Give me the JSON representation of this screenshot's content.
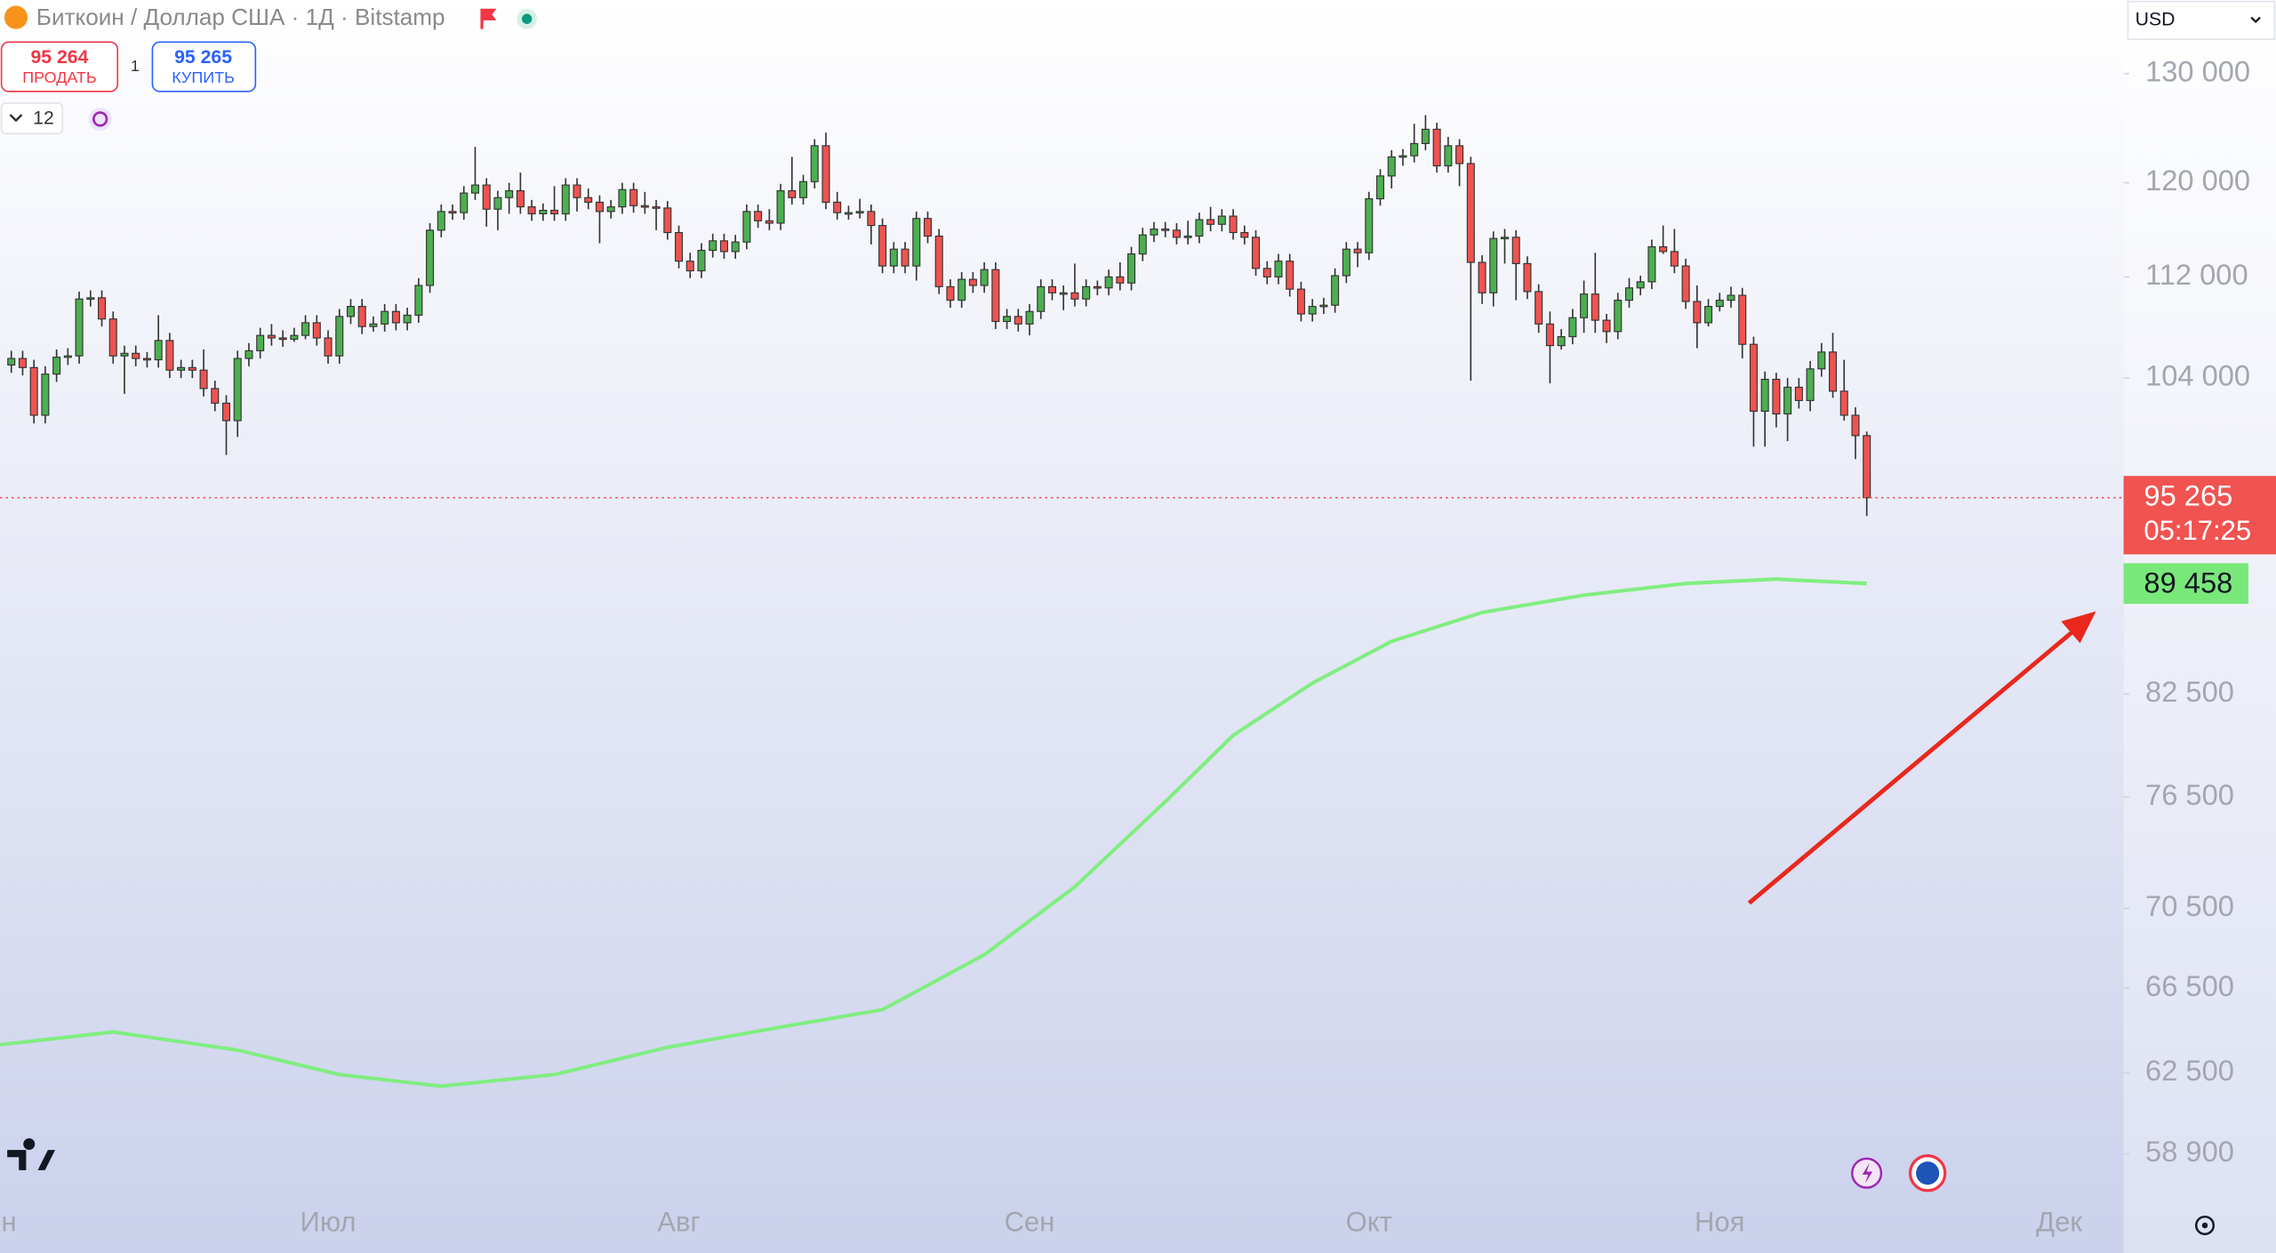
{
  "header": {
    "title": "Биткоин / Доллар США · 1Д · Bitstamp",
    "sell_price": "95 264",
    "sell_label": "ПРОДАТЬ",
    "spread": "1",
    "buy_price": "95 265",
    "buy_label": "КУПИТЬ",
    "interval_count": "12",
    "currency": "USD"
  },
  "chart_data": {
    "type": "candlestick",
    "log_scale": true,
    "grid": false,
    "up_color": "#4caf50",
    "down_color": "#ef5350",
    "xlim": [
      1,
      188.7
    ],
    "ylim": [
      57150,
      137200
    ],
    "xticks": [
      {
        "value": 0,
        "label": "Июн"
      },
      {
        "value": 30,
        "label": "Июл"
      },
      {
        "value": 61,
        "label": "Авг"
      },
      {
        "value": 92,
        "label": "Сен"
      },
      {
        "value": 122,
        "label": "Окт"
      },
      {
        "value": 153,
        "label": "Ноя"
      },
      {
        "value": 183,
        "label": "Дек"
      }
    ],
    "yticks": [
      {
        "value": 130000,
        "label": "130 000"
      },
      {
        "value": 120000,
        "label": "120 000"
      },
      {
        "value": 112000,
        "label": "112 000"
      },
      {
        "value": 104000,
        "label": "104 000"
      },
      {
        "value": 82500,
        "label": "82 500"
      },
      {
        "value": 76500,
        "label": "76 500"
      },
      {
        "value": 70500,
        "label": "70 500"
      },
      {
        "value": 66500,
        "label": "66 500"
      },
      {
        "value": 62500,
        "label": "62 500"
      },
      {
        "value": 58900,
        "label": "58 900"
      }
    ],
    "x": [
      2,
      3,
      4,
      5,
      6,
      7,
      8,
      9,
      10,
      11,
      12,
      13,
      14,
      15,
      16,
      17,
      18,
      19,
      20,
      21,
      22,
      23,
      24,
      25,
      26,
      27,
      28,
      29,
      30,
      31,
      32,
      33,
      34,
      35,
      36,
      37,
      38,
      39,
      40,
      41,
      42,
      43,
      44,
      45,
      46,
      47,
      48,
      49,
      50,
      51,
      52,
      53,
      54,
      55,
      56,
      57,
      58,
      59,
      60,
      61,
      62,
      63,
      64,
      65,
      66,
      67,
      68,
      69,
      70,
      71,
      72,
      73,
      74,
      75,
      76,
      77,
      78,
      79,
      80,
      81,
      82,
      83,
      84,
      85,
      86,
      87,
      88,
      89,
      90,
      91,
      92,
      93,
      94,
      95,
      96,
      97,
      98,
      99,
      100,
      101,
      102,
      103,
      104,
      105,
      106,
      107,
      108,
      109,
      110,
      111,
      112,
      113,
      114,
      115,
      116,
      117,
      118,
      119,
      120,
      121,
      122,
      123,
      124,
      125,
      126,
      127,
      128,
      129,
      130,
      131,
      132,
      133,
      134,
      135,
      136,
      137,
      138,
      139,
      140,
      141,
      142,
      143,
      144,
      145,
      146,
      147,
      148,
      149,
      150,
      151,
      152,
      153,
      154,
      155,
      156,
      157,
      158,
      159,
      160,
      161,
      162,
      163,
      164,
      165,
      166
    ],
    "candles": [
      [
        105000,
        106100,
        104400,
        105500
      ],
      [
        105500,
        106100,
        104200,
        104800
      ],
      [
        104800,
        105400,
        100600,
        101200
      ],
      [
        101200,
        104900,
        100600,
        104300
      ],
      [
        104300,
        106200,
        103700,
        105600
      ],
      [
        105600,
        106300,
        105000,
        105700
      ],
      [
        105700,
        110800,
        105100,
        110200
      ],
      [
        110200,
        110900,
        109600,
        110300
      ],
      [
        110300,
        110900,
        108000,
        108600
      ],
      [
        108600,
        109200,
        105100,
        105700
      ],
      [
        105700,
        106500,
        102800,
        105900
      ],
      [
        105900,
        106500,
        104900,
        105500
      ],
      [
        105500,
        106000,
        104800,
        105400
      ],
      [
        105400,
        108900,
        104800,
        106900
      ],
      [
        106900,
        107500,
        104000,
        104600
      ],
      [
        104600,
        105400,
        104000,
        104800
      ],
      [
        104800,
        105400,
        104000,
        104600
      ],
      [
        104600,
        106200,
        102600,
        103200
      ],
      [
        103200,
        103800,
        101500,
        102100
      ],
      [
        102100,
        102700,
        98300,
        100800
      ],
      [
        100800,
        106100,
        99600,
        105500
      ],
      [
        105500,
        106700,
        104900,
        106100
      ],
      [
        106100,
        107900,
        105500,
        107300
      ],
      [
        107300,
        108200,
        106500,
        107100
      ],
      [
        107100,
        107700,
        106400,
        107000
      ],
      [
        107000,
        107900,
        106800,
        107300
      ],
      [
        107300,
        108900,
        107000,
        108300
      ],
      [
        108300,
        108900,
        106500,
        107100
      ],
      [
        107100,
        107700,
        105100,
        105700
      ],
      [
        105700,
        109400,
        105100,
        108800
      ],
      [
        108800,
        110200,
        108200,
        109600
      ],
      [
        109600,
        110200,
        107400,
        108000
      ],
      [
        108000,
        108800,
        107600,
        108200
      ],
      [
        108200,
        109800,
        107600,
        109200
      ],
      [
        109200,
        109800,
        107700,
        108300
      ],
      [
        108300,
        109500,
        107700,
        108900
      ],
      [
        108900,
        111900,
        108300,
        111300
      ],
      [
        111300,
        116500,
        110700,
        115900
      ],
      [
        115900,
        118100,
        115300,
        117500
      ],
      [
        117500,
        118100,
        116800,
        117400
      ],
      [
        117400,
        119700,
        116800,
        119100
      ],
      [
        119100,
        123200,
        118500,
        119800
      ],
      [
        119800,
        120400,
        116200,
        117700
      ],
      [
        117700,
        119300,
        115900,
        118700
      ],
      [
        118700,
        120000,
        117300,
        119300
      ],
      [
        119300,
        120900,
        117300,
        117900
      ],
      [
        117900,
        118500,
        116700,
        117300
      ],
      [
        117300,
        118200,
        116700,
        117600
      ],
      [
        117600,
        119700,
        116700,
        117300
      ],
      [
        117300,
        120400,
        116700,
        119800
      ],
      [
        119800,
        120400,
        117500,
        118700
      ],
      [
        118700,
        119500,
        117700,
        118300
      ],
      [
        118300,
        118900,
        114800,
        117500
      ],
      [
        117500,
        118500,
        116900,
        117900
      ],
      [
        117900,
        120000,
        117300,
        119400
      ],
      [
        119400,
        120000,
        117400,
        118000
      ],
      [
        118000,
        119200,
        117300,
        117900
      ],
      [
        117900,
        118500,
        115900,
        117800
      ],
      [
        117800,
        118400,
        115100,
        115700
      ],
      [
        115700,
        116300,
        112700,
        113300
      ],
      [
        113300,
        114000,
        111900,
        112500
      ],
      [
        112500,
        114800,
        111900,
        114200
      ],
      [
        114200,
        115600,
        113600,
        115000
      ],
      [
        115000,
        115600,
        113500,
        114100
      ],
      [
        114100,
        115500,
        113500,
        114900
      ],
      [
        114900,
        118100,
        114300,
        117500
      ],
      [
        117500,
        118100,
        116100,
        116700
      ],
      [
        116700,
        117700,
        115900,
        116500
      ],
      [
        116500,
        119900,
        115900,
        119300
      ],
      [
        119300,
        122300,
        118100,
        118700
      ],
      [
        118700,
        120700,
        118100,
        120100
      ],
      [
        120100,
        123900,
        119500,
        123300
      ],
      [
        123300,
        124500,
        117700,
        118300
      ],
      [
        118300,
        119200,
        116800,
        117400
      ],
      [
        117400,
        118000,
        116800,
        117400
      ],
      [
        117400,
        118600,
        116900,
        117500
      ],
      [
        117500,
        118100,
        114700,
        116300
      ],
      [
        116300,
        116900,
        112300,
        112900
      ],
      [
        112900,
        114900,
        112300,
        114300
      ],
      [
        114300,
        114900,
        112300,
        112900
      ],
      [
        112900,
        117500,
        111700,
        116900
      ],
      [
        116900,
        117500,
        114800,
        115400
      ],
      [
        115400,
        116000,
        110600,
        111200
      ],
      [
        111200,
        111800,
        109500,
        110100
      ],
      [
        110100,
        112400,
        109500,
        111800
      ],
      [
        111800,
        112400,
        110700,
        111300
      ],
      [
        111300,
        113200,
        110700,
        112600
      ],
      [
        112600,
        113200,
        107800,
        108400
      ],
      [
        108400,
        109400,
        107800,
        108800
      ],
      [
        108800,
        109400,
        107600,
        108200
      ],
      [
        108200,
        109800,
        107300,
        109200
      ],
      [
        109200,
        111800,
        108600,
        111200
      ],
      [
        111200,
        111800,
        110100,
        110700
      ],
      [
        110700,
        111300,
        109300,
        110700
      ],
      [
        110700,
        113100,
        109600,
        110200
      ],
      [
        110200,
        111800,
        109600,
        111200
      ],
      [
        111200,
        111700,
        110500,
        111100
      ],
      [
        111100,
        112600,
        110500,
        112000
      ],
      [
        112000,
        113200,
        110900,
        111500
      ],
      [
        111500,
        114500,
        110900,
        113900
      ],
      [
        113900,
        116100,
        113300,
        115500
      ],
      [
        115500,
        116600,
        114900,
        116000
      ],
      [
        116000,
        116600,
        115300,
        115900
      ],
      [
        115900,
        116500,
        114700,
        115300
      ],
      [
        115300,
        116700,
        114700,
        115400
      ],
      [
        115400,
        117400,
        114800,
        116800
      ],
      [
        116800,
        117900,
        115800,
        116400
      ],
      [
        116400,
        117700,
        115800,
        117100
      ],
      [
        117100,
        117700,
        115100,
        115700
      ],
      [
        115700,
        116300,
        114700,
        115300
      ],
      [
        115300,
        115900,
        112100,
        112700
      ],
      [
        112700,
        113300,
        111400,
        112000
      ],
      [
        112000,
        113900,
        111400,
        113300
      ],
      [
        113300,
        113900,
        110400,
        111000
      ],
      [
        111000,
        111600,
        108400,
        109000
      ],
      [
        109000,
        110200,
        108400,
        109600
      ],
      [
        109600,
        110300,
        109000,
        109700
      ],
      [
        109700,
        112700,
        109100,
        112100
      ],
      [
        112100,
        114900,
        111500,
        114300
      ],
      [
        114300,
        114900,
        112800,
        114000
      ],
      [
        114000,
        119200,
        113400,
        118600
      ],
      [
        118600,
        121200,
        118000,
        120600
      ],
      [
        120600,
        122900,
        119500,
        122300
      ],
      [
        122300,
        123000,
        121500,
        122400
      ],
      [
        122400,
        125300,
        121800,
        123500
      ],
      [
        123500,
        126100,
        122900,
        124800
      ],
      [
        124800,
        125400,
        120900,
        121500
      ],
      [
        121500,
        124100,
        120900,
        123300
      ],
      [
        123300,
        123900,
        119700,
        121700
      ],
      [
        121700,
        122300,
        103800,
        113200
      ],
      [
        113200,
        113800,
        109800,
        110700
      ],
      [
        110700,
        115800,
        109600,
        115200
      ],
      [
        115200,
        116000,
        113100,
        115300
      ],
      [
        115300,
        115900,
        110100,
        113100
      ],
      [
        113100,
        113700,
        110200,
        110800
      ],
      [
        110800,
        111400,
        107500,
        108200
      ],
      [
        108200,
        109200,
        103600,
        106500
      ],
      [
        106500,
        107800,
        106200,
        107200
      ],
      [
        107200,
        109400,
        106600,
        108700
      ],
      [
        108700,
        111700,
        107500,
        110600
      ],
      [
        110600,
        114000,
        107500,
        108500
      ],
      [
        108500,
        109000,
        106700,
        107600
      ],
      [
        107600,
        110700,
        107000,
        110100
      ],
      [
        110100,
        111900,
        109500,
        111100
      ],
      [
        111100,
        112100,
        110500,
        111600
      ],
      [
        111600,
        115100,
        111000,
        114500
      ],
      [
        114500,
        116300,
        113900,
        114100
      ],
      [
        114100,
        116000,
        112300,
        112900
      ],
      [
        112900,
        113500,
        109400,
        110000
      ],
      [
        110000,
        111300,
        106300,
        108300
      ],
      [
        108300,
        110200,
        108000,
        109600
      ],
      [
        109600,
        110700,
        109200,
        110100
      ],
      [
        110100,
        111200,
        109500,
        110500
      ],
      [
        110500,
        111100,
        105500,
        106600
      ],
      [
        106600,
        107200,
        98900,
        101500
      ],
      [
        101500,
        104500,
        98900,
        103900
      ],
      [
        103900,
        104400,
        100300,
        101300
      ],
      [
        101300,
        104000,
        99300,
        103300
      ],
      [
        103300,
        104000,
        101700,
        102300
      ],
      [
        102300,
        105300,
        101500,
        104700
      ],
      [
        104700,
        106700,
        104100,
        106000
      ],
      [
        106000,
        107500,
        102500,
        103000
      ],
      [
        103000,
        105400,
        100800,
        101200
      ],
      [
        101200,
        101800,
        98000,
        99700
      ],
      [
        99700,
        100000,
        94000,
        95265
      ]
    ],
    "last_price": {
      "value": 95265,
      "label": "95 265",
      "countdown": "05:17:25",
      "color": "#f05350"
    },
    "series": [
      {
        "color": "#80ee80",
        "x": [
          1,
          11,
          22,
          31,
          40,
          50,
          60,
          70,
          79,
          88,
          96,
          104,
          110,
          117,
          124,
          132,
          141,
          150,
          158,
          166
        ],
        "values": [
          63800,
          64400,
          63550,
          62420,
          61890,
          62420,
          63680,
          64630,
          65460,
          68150,
          71630,
          76240,
          80040,
          83160,
          85750,
          87580,
          88700,
          89460,
          89750,
          89458
        ],
        "value_labels": [
          null,
          null,
          null,
          null,
          null,
          null,
          null,
          null,
          null,
          null,
          null,
          null,
          null,
          null,
          null,
          null,
          null,
          null,
          null,
          "89 458"
        ]
      }
    ]
  }
}
